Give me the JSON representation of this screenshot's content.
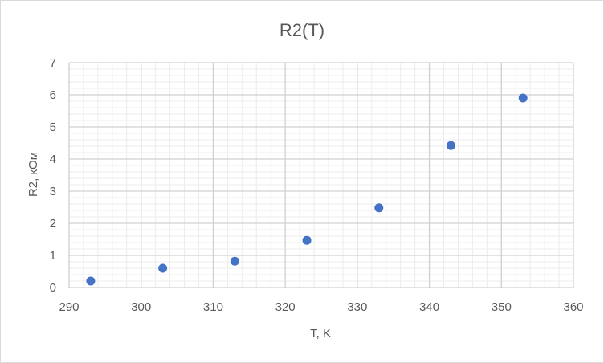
{
  "chart_data": {
    "type": "scatter",
    "title": "R2(T)",
    "xlabel": "T, K",
    "ylabel": "R2, кОм",
    "xlim": [
      290,
      360
    ],
    "ylim": [
      0,
      7
    ],
    "x_ticks": [
      "290",
      "300",
      "310",
      "320",
      "330",
      "340",
      "350",
      "360"
    ],
    "y_ticks": [
      "0",
      "1",
      "2",
      "3",
      "4",
      "5",
      "6",
      "7"
    ],
    "grid": "major and minor",
    "legend": "none",
    "marker_color": "#4472C4",
    "series": [
      {
        "points": [
          {
            "x": 293,
            "y": 0.2
          },
          {
            "x": 303,
            "y": 0.6
          },
          {
            "x": 313,
            "y": 0.82
          },
          {
            "x": 323,
            "y": 1.47
          },
          {
            "x": 333,
            "y": 2.48
          },
          {
            "x": 343,
            "y": 4.42
          },
          {
            "x": 353,
            "y": 5.9
          }
        ]
      }
    ]
  }
}
